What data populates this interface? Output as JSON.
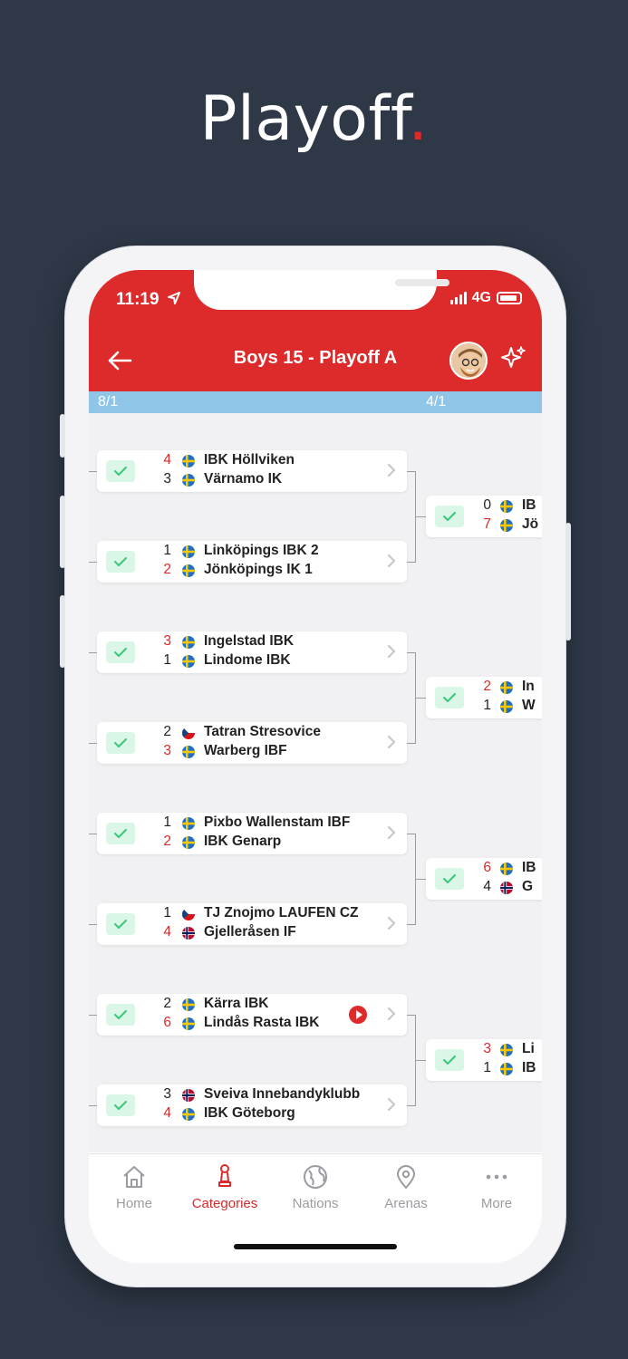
{
  "headline": {
    "text": "Playoff",
    "dot": "."
  },
  "status": {
    "time": "11:19",
    "network": "4G"
  },
  "nav": {
    "title": "Boys 15 - Playoff A"
  },
  "rounds": {
    "left": "8/1",
    "right": "4/1"
  },
  "matches_r16": [
    {
      "top": {
        "score": "4",
        "team": "IBK Höllviken",
        "flag": "se",
        "win": true
      },
      "bottom": {
        "score": "3",
        "team": "Värnamo IK",
        "flag": "se",
        "win": false
      }
    },
    {
      "top": {
        "score": "1",
        "team": "Linköpings IBK 2",
        "flag": "se",
        "win": false
      },
      "bottom": {
        "score": "2",
        "team": "Jönköpings IK 1",
        "flag": "se",
        "win": true
      }
    },
    {
      "top": {
        "score": "3",
        "team": "Ingelstad IBK",
        "flag": "se",
        "win": true
      },
      "bottom": {
        "score": "1",
        "team": "Lindome IBK",
        "flag": "se",
        "win": false
      }
    },
    {
      "top": {
        "score": "2",
        "team": "Tatran Stresovice",
        "flag": "cz",
        "win": false
      },
      "bottom": {
        "score": "3",
        "team": "Warberg IBF",
        "flag": "se",
        "win": true
      }
    },
    {
      "top": {
        "score": "1",
        "team": "Pixbo Wallenstam IBF",
        "flag": "se",
        "win": false
      },
      "bottom": {
        "score": "2",
        "team": "IBK Genarp",
        "flag": "se",
        "win": true
      }
    },
    {
      "top": {
        "score": "1",
        "team": "TJ Znojmo LAUFEN CZ",
        "flag": "cz",
        "win": false
      },
      "bottom": {
        "score": "4",
        "team": "Gjelleråsen IF",
        "flag": "no",
        "win": true
      }
    },
    {
      "top": {
        "score": "2",
        "team": "Kärra IBK",
        "flag": "se",
        "win": false
      },
      "bottom": {
        "score": "6",
        "team": "Lindås Rasta IBK",
        "flag": "se",
        "win": true
      },
      "live": true
    },
    {
      "top": {
        "score": "3",
        "team": "Sveiva Innebandyklubb",
        "flag": "no",
        "win": false
      },
      "bottom": {
        "score": "4",
        "team": "IBK Göteborg",
        "flag": "se",
        "win": true
      }
    }
  ],
  "matches_qf": [
    {
      "top": {
        "score": "0",
        "team": "IB",
        "flag": "se",
        "win": false
      },
      "bottom": {
        "score": "7",
        "team": "Jö",
        "flag": "se",
        "win": true
      }
    },
    {
      "top": {
        "score": "2",
        "team": "In",
        "flag": "se",
        "win": true
      },
      "bottom": {
        "score": "1",
        "team": "W",
        "flag": "se",
        "win": false
      }
    },
    {
      "top": {
        "score": "6",
        "team": "IB",
        "flag": "se",
        "win": true
      },
      "bottom": {
        "score": "4",
        "team": "G",
        "flag": "no",
        "win": false
      }
    },
    {
      "top": {
        "score": "3",
        "team": "Li",
        "flag": "se",
        "win": true
      },
      "bottom": {
        "score": "1",
        "team": "IB",
        "flag": "se",
        "win": false
      }
    }
  ],
  "tabs": [
    {
      "label": "Home",
      "icon": "home-icon"
    },
    {
      "label": "Categories",
      "icon": "trophy-icon",
      "active": true
    },
    {
      "label": "Nations",
      "icon": "globe-icon"
    },
    {
      "label": "Arenas",
      "icon": "location-pin-icon"
    },
    {
      "label": "More",
      "icon": "more-dots-icon"
    }
  ],
  "colors": {
    "accent": "#dd2a2b",
    "round_bar": "#8fc5e6",
    "background": "#2e3847",
    "win": "#d72b2b"
  }
}
